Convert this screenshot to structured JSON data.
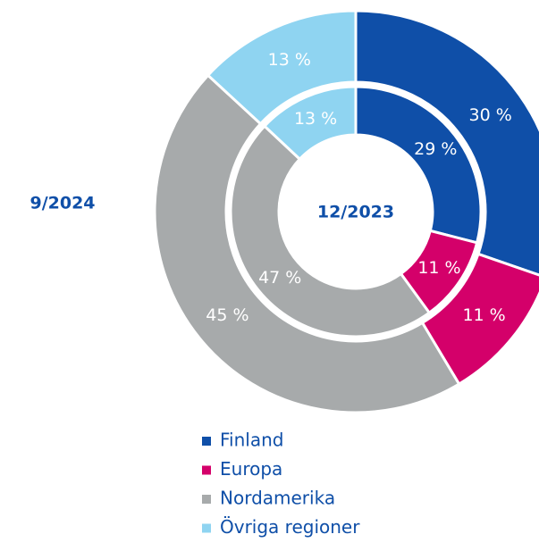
{
  "chart_data": {
    "type": "nested-donut",
    "categories": [
      "Finland",
      "Europa",
      "Nordamerika",
      "Övriga regioner"
    ],
    "colors": [
      "#0f4fa8",
      "#d4006a",
      "#a7aaab",
      "#8fd4f1"
    ],
    "series": [
      {
        "name": "9/2024",
        "values": [
          30,
          11,
          45,
          13
        ],
        "value_labels": [
          "30 %",
          "11 %",
          "45 %",
          "13 %"
        ]
      },
      {
        "name": "12/2023",
        "values": [
          29,
          11,
          47,
          13
        ],
        "value_labels": [
          "29 %",
          "11 %",
          "47 %",
          "13 %"
        ]
      }
    ]
  }
}
